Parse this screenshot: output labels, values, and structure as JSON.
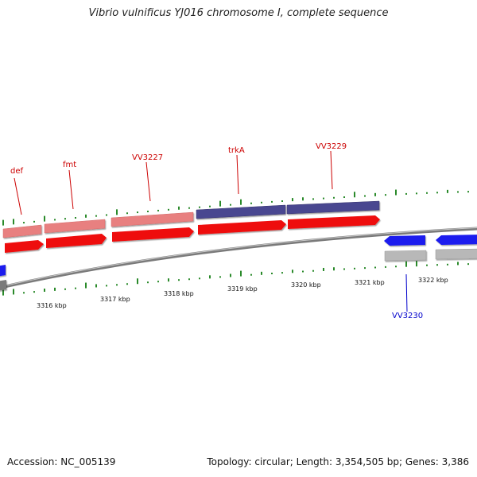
{
  "title": "Vibrio vulnificus YJ016 chromosome I, complete sequence",
  "footer": {
    "accession": "Accession: NC_005139",
    "summary": "Topology: circular; Length: 3,354,505 bp; Genes: 3,386"
  },
  "colors": {
    "forward_cds": "#ee1111",
    "forward_gene": "#e88080",
    "operon_gene": "#4a4690",
    "reverse_cds": "#1a1aee",
    "reverse_gene": "#b8b8b8",
    "backbone": "#808080",
    "gc_tick": "#2a8a2a",
    "forward_label": "#cc0000",
    "reverse_label": "#0000cc"
  },
  "kbp_ticks": [
    "3316 kbp",
    "3317 kbp",
    "3318 kbp",
    "3319 kbp",
    "3320 kbp",
    "3321 kbp",
    "3322 kbp"
  ],
  "forward_labels": [
    "def",
    "fmt",
    "VV3227",
    "trkA",
    "VV3229"
  ],
  "reverse_labels": [
    "VV3230"
  ]
}
